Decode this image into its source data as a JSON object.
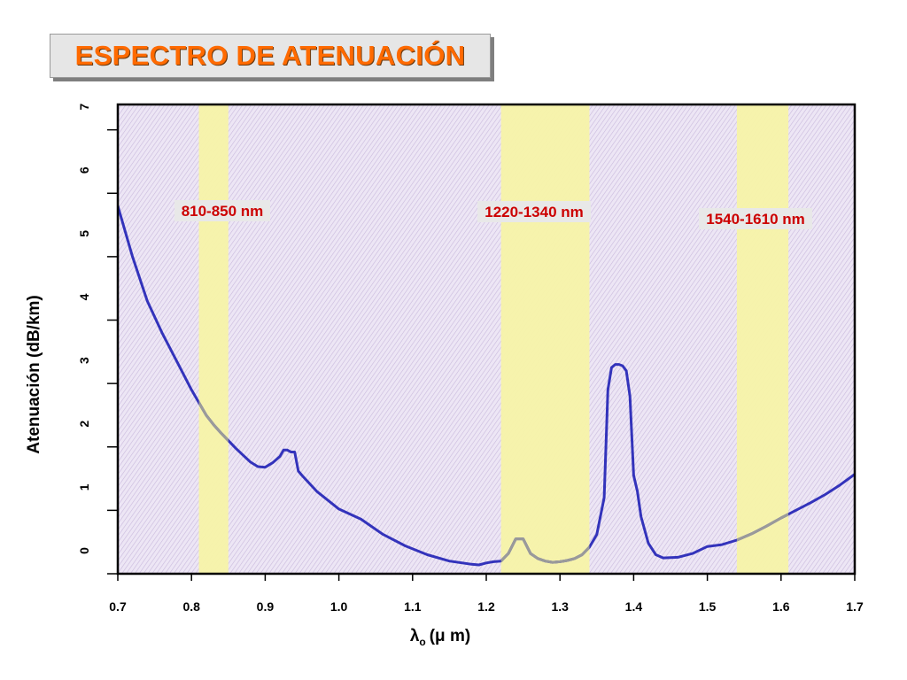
{
  "title": "ESPECTRO DE ATENUACIÓN",
  "chart_data": {
    "type": "line",
    "ylabel": "Atenuación (dB/km)",
    "xlabel_symbol": "λ",
    "xlabel_sub": "o",
    "xlabel_unit": "(μ m)",
    "xlim": [
      0.7,
      1.7
    ],
    "ylim": [
      0,
      7.4
    ],
    "x_ticks": [
      0.7,
      0.8,
      0.9,
      1.0,
      1.1,
      1.2,
      1.3,
      1.4,
      1.5,
      1.6,
      1.7
    ],
    "x_tick_labels": [
      "0.7",
      "0.8",
      "0.9",
      "1.0",
      "1.1",
      "1.2",
      "1.3",
      "1.4",
      "1.5",
      "1.6",
      "1.7"
    ],
    "y_ticks": [
      0,
      1,
      2,
      3,
      4,
      5,
      6,
      7
    ],
    "y_tick_labels": [
      "0",
      "1",
      "2",
      "3",
      "4",
      "5",
      "6",
      "7"
    ],
    "grid": false,
    "colors": {
      "plot_background": "#e6dcf0",
      "band": "#f7f3a8",
      "curve": "#3333bb",
      "curve_in_band": "#9a9a9a",
      "band_label": "#cc0000",
      "band_label_bg": "#e8e8e8"
    },
    "bands": [
      {
        "label": "810-850 nm",
        "x_range": [
          0.81,
          0.85
        ]
      },
      {
        "label": "1220-1340 nm",
        "x_range": [
          1.22,
          1.34
        ]
      },
      {
        "label": "1540-1610 nm",
        "x_range": [
          1.54,
          1.61
        ]
      }
    ],
    "series": [
      {
        "x": [
          0.7,
          0.72,
          0.74,
          0.76,
          0.78,
          0.8,
          0.81,
          0.82,
          0.83,
          0.84,
          0.85,
          0.86,
          0.87,
          0.88,
          0.89,
          0.9,
          0.91,
          0.92,
          0.925,
          0.93,
          0.935,
          0.94,
          0.945,
          0.95,
          0.97,
          1.0,
          1.03,
          1.06,
          1.09,
          1.12,
          1.15,
          1.18,
          1.19,
          1.2,
          1.21,
          1.22,
          1.23,
          1.24,
          1.25,
          1.26,
          1.27,
          1.28,
          1.29,
          1.3,
          1.31,
          1.32,
          1.33,
          1.34,
          1.35,
          1.36,
          1.365,
          1.37,
          1.375,
          1.38,
          1.385,
          1.39,
          1.395,
          1.4,
          1.405,
          1.41,
          1.42,
          1.43,
          1.44,
          1.46,
          1.48,
          1.5,
          1.52,
          1.54,
          1.56,
          1.58,
          1.6,
          1.62,
          1.64,
          1.66,
          1.68,
          1.7
        ],
        "y": [
          5.8,
          5.0,
          4.3,
          3.8,
          3.35,
          2.9,
          2.7,
          2.5,
          2.35,
          2.22,
          2.1,
          1.98,
          1.87,
          1.76,
          1.69,
          1.68,
          1.75,
          1.85,
          1.95,
          1.95,
          1.92,
          1.92,
          1.62,
          1.55,
          1.3,
          1.02,
          0.86,
          0.62,
          0.44,
          0.3,
          0.2,
          0.15,
          0.14,
          0.17,
          0.19,
          0.2,
          0.32,
          0.55,
          0.55,
          0.32,
          0.24,
          0.2,
          0.18,
          0.19,
          0.21,
          0.24,
          0.3,
          0.42,
          0.62,
          1.2,
          2.9,
          3.25,
          3.3,
          3.3,
          3.28,
          3.2,
          2.8,
          1.55,
          1.3,
          0.9,
          0.48,
          0.3,
          0.25,
          0.26,
          0.32,
          0.43,
          0.46,
          0.53,
          0.63,
          0.75,
          0.88,
          1.0,
          1.12,
          1.25,
          1.4,
          1.57
        ]
      }
    ]
  }
}
